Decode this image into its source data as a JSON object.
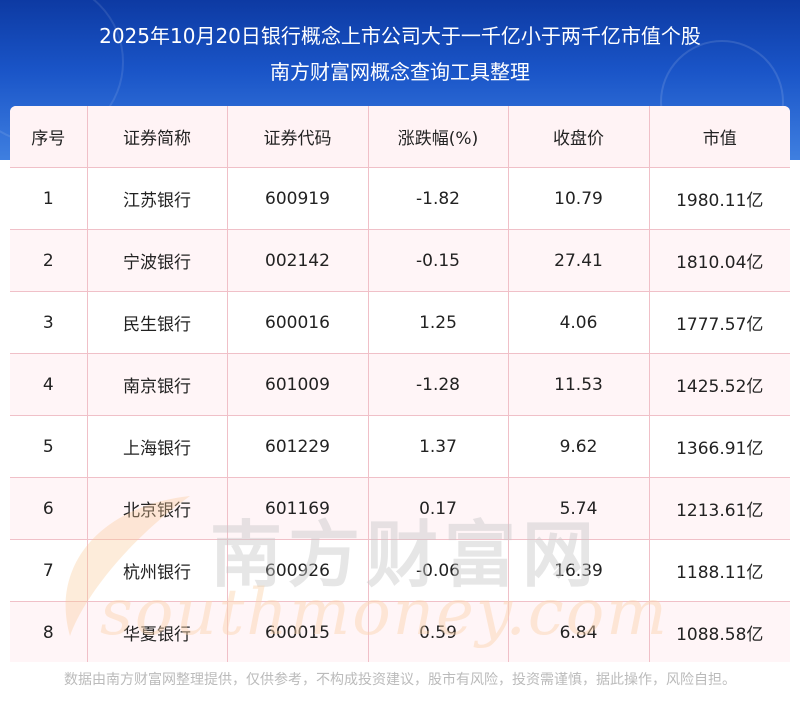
{
  "title": {
    "line1": "2025年10月20日银行概念上市公司大于一千亿小于两千亿市值个股",
    "line2": "南方财富网概念查询工具整理"
  },
  "table": {
    "headers": [
      "序号",
      "证券简称",
      "证券代码",
      "涨跌幅(%)",
      "收盘价",
      "市值"
    ],
    "rows": [
      [
        "1",
        "江苏银行",
        "600919",
        "-1.82",
        "10.79",
        "1980.11亿"
      ],
      [
        "2",
        "宁波银行",
        "002142",
        "-0.15",
        "27.41",
        "1810.04亿"
      ],
      [
        "3",
        "民生银行",
        "600016",
        "1.25",
        "4.06",
        "1777.57亿"
      ],
      [
        "4",
        "南京银行",
        "601009",
        "-1.28",
        "11.53",
        "1425.52亿"
      ],
      [
        "5",
        "上海银行",
        "601229",
        "1.37",
        "9.62",
        "1366.91亿"
      ],
      [
        "6",
        "北京银行",
        "601169",
        "0.17",
        "5.74",
        "1213.61亿"
      ],
      [
        "7",
        "杭州银行",
        "600926",
        "-0.06",
        "16.39",
        "1188.11亿"
      ],
      [
        "8",
        "华夏银行",
        "600015",
        "0.59",
        "6.84",
        "1088.58亿"
      ]
    ]
  },
  "watermark": {
    "cn": "南方财富网",
    "en": "southmoney.com"
  },
  "footer": "数据由南方财富网整理提供，仅供参考，不构成投资建议，股市有风险，投资需谨慎，据此操作，风险自担。",
  "colors": {
    "header_top": "#0d3aa3",
    "header_bottom": "#3f7fe0",
    "grid_line": "#f0c0c8",
    "row_tint": "#fff5f7"
  }
}
